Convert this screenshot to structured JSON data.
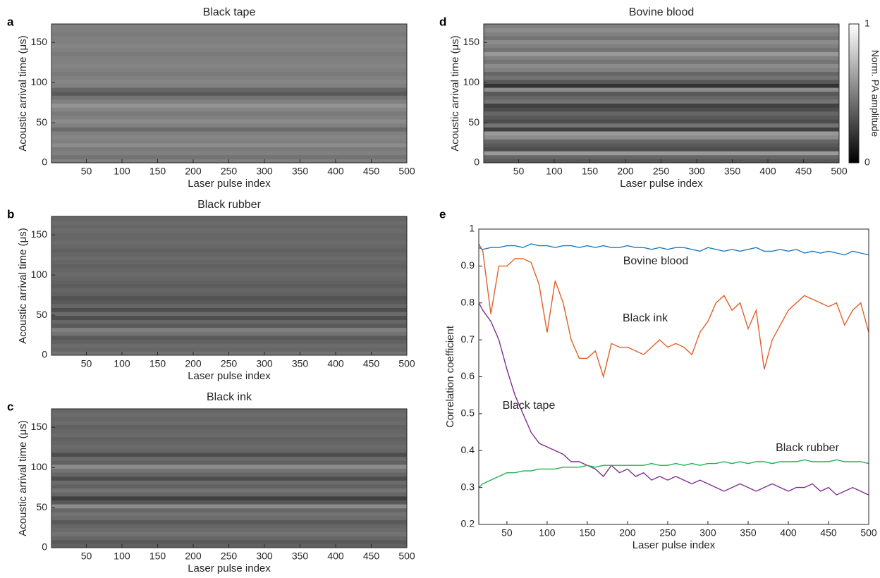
{
  "chart_data": [
    {
      "type": "heatmap",
      "panel_label": "a",
      "title": "Black tape",
      "title_color": "#7e2f8e",
      "xlabel": "Laser pulse index",
      "ylabel": "Acoustic arrival time (μs)",
      "xlim": [
        1,
        500
      ],
      "xticks": [
        50,
        100,
        150,
        200,
        250,
        300,
        350,
        400,
        450,
        500
      ],
      "ylim": [
        0,
        173
      ],
      "yticks": [
        0,
        50,
        100,
        150
      ],
      "rows": [
        0.5,
        0.45,
        0.5,
        0.48,
        0.55,
        0.5,
        0.52,
        0.5,
        0.42,
        0.5,
        0.55,
        0.5,
        0.48,
        0.52,
        0.58,
        0.5,
        0.45,
        0.35,
        0.4,
        0.5,
        0.52,
        0.5,
        0.48,
        0.5,
        0.52,
        0.5,
        0.5,
        0.48,
        0.5,
        0.52,
        0.5,
        0.5,
        0.48,
        0.5,
        0.5
      ]
    },
    {
      "type": "heatmap",
      "panel_label": "b",
      "title": "Black rubber",
      "title_color": "#20b050",
      "xlabel": "Laser pulse index",
      "ylabel": "Acoustic arrival time (μs)",
      "xlim": [
        1,
        500
      ],
      "xticks": [
        50,
        100,
        150,
        200,
        250,
        300,
        350,
        400,
        450,
        500
      ],
      "ylim": [
        0,
        173
      ],
      "yticks": [
        0,
        50,
        100,
        150
      ],
      "rows": [
        0.45,
        0.4,
        0.42,
        0.38,
        0.35,
        0.45,
        0.5,
        0.35,
        0.4,
        0.3,
        0.42,
        0.3,
        0.4,
        0.35,
        0.32,
        0.38,
        0.4,
        0.36,
        0.38,
        0.4,
        0.42,
        0.4,
        0.38,
        0.4,
        0.42,
        0.4,
        0.38,
        0.4,
        0.42,
        0.4,
        0.4,
        0.42,
        0.4,
        0.42,
        0.4
      ]
    },
    {
      "type": "heatmap",
      "panel_label": "c",
      "title": "Black ink",
      "title_color": "#e0602a",
      "xlabel": "Laser pulse index",
      "ylabel": "Acoustic arrival time (μs)",
      "xlim": [
        1,
        500
      ],
      "xticks": [
        50,
        100,
        150,
        200,
        250,
        300,
        350,
        400,
        450,
        500
      ],
      "ylim": [
        0,
        173
      ],
      "yticks": [
        0,
        50,
        100,
        150
      ],
      "rows": [
        0.38,
        0.35,
        0.4,
        0.45,
        0.42,
        0.4,
        0.35,
        0.42,
        0.45,
        0.4,
        0.55,
        0.35,
        0.25,
        0.4,
        0.45,
        0.38,
        0.42,
        0.3,
        0.4,
        0.45,
        0.55,
        0.38,
        0.42,
        0.3,
        0.4,
        0.42,
        0.4,
        0.38,
        0.42,
        0.4,
        0.38,
        0.42,
        0.4,
        0.42,
        0.4
      ]
    },
    {
      "type": "heatmap",
      "panel_label": "d",
      "title": "Bovine blood",
      "title_color": "#1f7bbf",
      "xlabel": "Laser pulse index",
      "ylabel": "Acoustic arrival time (μs)",
      "xlim": [
        1,
        500
      ],
      "xticks": [
        50,
        100,
        150,
        200,
        250,
        300,
        350,
        400,
        450,
        500
      ],
      "ylim": [
        0,
        173
      ],
      "yticks": [
        0,
        50,
        100,
        150
      ],
      "rows": [
        0.35,
        0.4,
        0.6,
        0.3,
        0.35,
        0.4,
        0.55,
        0.6,
        0.25,
        0.45,
        0.3,
        0.35,
        0.4,
        0.3,
        0.25,
        0.45,
        0.4,
        0.35,
        0.55,
        0.2,
        0.35,
        0.45,
        0.4,
        0.5,
        0.55,
        0.45,
        0.5,
        0.6,
        0.45,
        0.5,
        0.55,
        0.45,
        0.5,
        0.55,
        0.5
      ],
      "colorbar": {
        "label": "Norm. PA amplitude",
        "lim": [
          0,
          1
        ],
        "ticks": [
          0,
          1
        ]
      }
    },
    {
      "type": "line",
      "panel_label": "e",
      "xlabel": "Laser pulse index",
      "ylabel": "Correlation coefficient",
      "xlim": [
        15,
        500
      ],
      "xticks": [
        50,
        100,
        150,
        200,
        250,
        300,
        350,
        400,
        450,
        500
      ],
      "ylim": [
        0.2,
        1
      ],
      "yticks": [
        0.2,
        0.3,
        0.4,
        0.5,
        0.6,
        0.7,
        0.8,
        0.9,
        1
      ],
      "x": [
        15,
        20,
        30,
        40,
        50,
        60,
        70,
        80,
        90,
        100,
        110,
        120,
        130,
        140,
        150,
        160,
        170,
        180,
        190,
        200,
        210,
        220,
        230,
        240,
        250,
        260,
        270,
        280,
        290,
        300,
        310,
        320,
        330,
        340,
        350,
        360,
        370,
        380,
        390,
        400,
        410,
        420,
        430,
        440,
        450,
        460,
        470,
        480,
        490,
        500
      ],
      "series": [
        {
          "name": "Bovine blood",
          "color": "#1f7bbf",
          "values": [
            0.95,
            0.945,
            0.95,
            0.95,
            0.955,
            0.955,
            0.95,
            0.96,
            0.955,
            0.955,
            0.95,
            0.955,
            0.955,
            0.95,
            0.955,
            0.95,
            0.955,
            0.95,
            0.95,
            0.955,
            0.95,
            0.95,
            0.945,
            0.95,
            0.945,
            0.95,
            0.95,
            0.945,
            0.94,
            0.95,
            0.945,
            0.94,
            0.945,
            0.94,
            0.945,
            0.95,
            0.94,
            0.94,
            0.945,
            0.94,
            0.945,
            0.935,
            0.94,
            0.935,
            0.94,
            0.935,
            0.93,
            0.94,
            0.935,
            0.93
          ]
        },
        {
          "name": "Black ink",
          "color": "#e0602a",
          "values": [
            0.96,
            0.94,
            0.77,
            0.9,
            0.9,
            0.92,
            0.92,
            0.91,
            0.85,
            0.72,
            0.86,
            0.8,
            0.7,
            0.65,
            0.65,
            0.67,
            0.6,
            0.69,
            0.68,
            0.68,
            0.67,
            0.66,
            0.68,
            0.7,
            0.68,
            0.69,
            0.68,
            0.66,
            0.72,
            0.75,
            0.8,
            0.82,
            0.78,
            0.8,
            0.73,
            0.78,
            0.62,
            0.7,
            0.74,
            0.78,
            0.8,
            0.82,
            0.81,
            0.8,
            0.79,
            0.8,
            0.74,
            0.78,
            0.8,
            0.72
          ]
        },
        {
          "name": "Black tape",
          "color": "#7e2f8e",
          "values": [
            0.8,
            0.78,
            0.75,
            0.7,
            0.62,
            0.55,
            0.5,
            0.45,
            0.42,
            0.41,
            0.4,
            0.39,
            0.37,
            0.37,
            0.36,
            0.35,
            0.33,
            0.36,
            0.34,
            0.35,
            0.33,
            0.34,
            0.32,
            0.33,
            0.32,
            0.33,
            0.32,
            0.31,
            0.32,
            0.31,
            0.3,
            0.29,
            0.3,
            0.31,
            0.3,
            0.29,
            0.3,
            0.31,
            0.3,
            0.29,
            0.3,
            0.3,
            0.31,
            0.29,
            0.3,
            0.28,
            0.29,
            0.3,
            0.29,
            0.28
          ]
        },
        {
          "name": "Black rubber",
          "color": "#20b050",
          "values": [
            0.3,
            0.31,
            0.32,
            0.33,
            0.34,
            0.34,
            0.345,
            0.345,
            0.35,
            0.35,
            0.35,
            0.355,
            0.355,
            0.355,
            0.36,
            0.355,
            0.36,
            0.36,
            0.36,
            0.36,
            0.36,
            0.36,
            0.365,
            0.36,
            0.36,
            0.365,
            0.36,
            0.365,
            0.36,
            0.365,
            0.365,
            0.37,
            0.365,
            0.37,
            0.365,
            0.37,
            0.37,
            0.365,
            0.37,
            0.37,
            0.37,
            0.375,
            0.37,
            0.37,
            0.37,
            0.375,
            0.37,
            0.37,
            0.37,
            0.365
          ]
        }
      ]
    }
  ]
}
